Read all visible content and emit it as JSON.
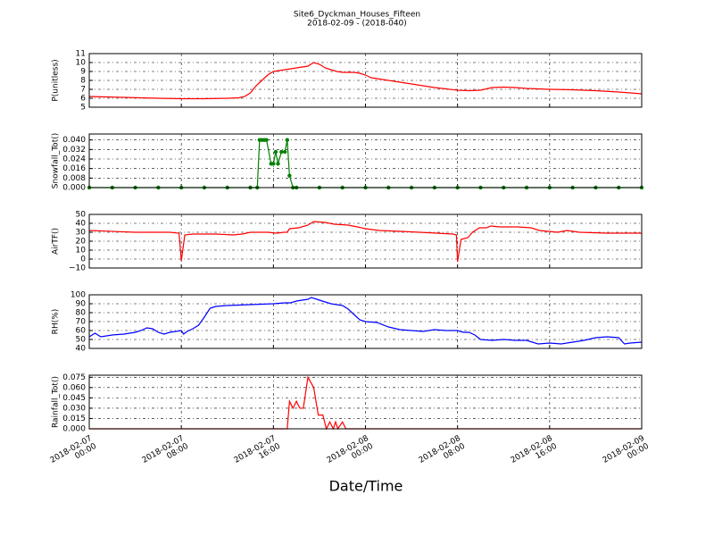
{
  "title": "Site6_Dyckman_Houses_Fifteen",
  "subtitle": "2018-02-09 - (2018-040)",
  "xlabel": "Date/Time",
  "xlim": [
    "2018-02-07 00:00",
    "2018-02-09 00:00"
  ],
  "xticks": [
    "2018-02-07 00:00",
    "2018-02-07 08:00",
    "2018-02-07 16:00",
    "2018-02-08 00:00",
    "2018-02-08 08:00",
    "2018-02-08 16:00",
    "2018-02-09 00:00"
  ],
  "grid": true,
  "chart_data": [
    {
      "type": "line",
      "ylabel": "P(unitless)",
      "color": "#ff0000",
      "ylim": [
        5,
        11
      ],
      "yticks": [
        5,
        6,
        7,
        8,
        9,
        10,
        11
      ],
      "x": [
        "2018-02-07 00:00",
        "2018-02-07 03:00",
        "2018-02-07 06:00",
        "2018-02-07 08:00",
        "2018-02-07 10:00",
        "2018-02-07 12:00",
        "2018-02-07 13:00",
        "2018-02-07 13:30",
        "2018-02-07 14:00",
        "2018-02-07 14:30",
        "2018-02-07 15:00",
        "2018-02-07 15:30",
        "2018-02-07 16:00",
        "2018-02-07 17:00",
        "2018-02-07 18:00",
        "2018-02-07 18:30",
        "2018-02-07 19:00",
        "2018-02-07 19:30",
        "2018-02-07 20:00",
        "2018-02-07 20:30",
        "2018-02-07 21:00",
        "2018-02-07 21:30",
        "2018-02-07 22:00",
        "2018-02-07 23:00",
        "2018-02-07 23:30",
        "2018-02-08 00:00",
        "2018-02-08 00:30",
        "2018-02-08 01:00",
        "2018-02-08 02:00",
        "2018-02-08 03:00",
        "2018-02-08 04:00",
        "2018-02-08 05:00",
        "2018-02-08 06:00",
        "2018-02-08 07:00",
        "2018-02-08 08:00",
        "2018-02-08 09:00",
        "2018-02-08 10:00",
        "2018-02-08 11:00",
        "2018-02-08 12:00",
        "2018-02-08 13:00",
        "2018-02-08 14:00",
        "2018-02-08 16:00",
        "2018-02-08 18:00",
        "2018-02-08 20:00",
        "2018-02-08 22:00",
        "2018-02-09 00:00"
      ],
      "values": [
        6.2,
        6.1,
        6.0,
        5.95,
        5.95,
        6.0,
        6.05,
        6.2,
        6.6,
        7.4,
        8.0,
        8.6,
        9.0,
        9.2,
        9.4,
        9.5,
        9.6,
        10.0,
        9.8,
        9.4,
        9.2,
        9.0,
        8.9,
        8.9,
        8.8,
        8.6,
        8.3,
        8.2,
        8.0,
        7.8,
        7.6,
        7.4,
        7.2,
        7.05,
        6.9,
        6.85,
        6.9,
        7.2,
        7.25,
        7.2,
        7.1,
        7.0,
        6.95,
        6.85,
        6.7,
        6.5
      ]
    },
    {
      "type": "line",
      "ylabel": "Snowfall_Tot()",
      "color": "#008000",
      "marker": "o",
      "ylim": [
        0,
        0.045
      ],
      "yticks": [
        {
          "value": 0,
          "label": "0.000"
        },
        {
          "value": 0.008,
          "label": "0.008"
        },
        {
          "value": 0.016,
          "label": "0.016"
        },
        {
          "value": 0.024,
          "label": "0.024"
        },
        {
          "value": 0.032,
          "label": "0.032"
        },
        {
          "value": 0.04,
          "label": "0.040"
        }
      ],
      "x": [
        "2018-02-07 00:00",
        "2018-02-07 02:00",
        "2018-02-07 04:00",
        "2018-02-07 06:00",
        "2018-02-07 08:00",
        "2018-02-07 10:00",
        "2018-02-07 12:00",
        "2018-02-07 14:00",
        "2018-02-07 14:36",
        "2018-02-07 14:48",
        "2018-02-07 15:00",
        "2018-02-07 15:12",
        "2018-02-07 15:24",
        "2018-02-07 15:48",
        "2018-02-07 16:00",
        "2018-02-07 16:12",
        "2018-02-07 16:24",
        "2018-02-07 16:42",
        "2018-02-07 17:00",
        "2018-02-07 17:12",
        "2018-02-07 17:24",
        "2018-02-07 17:42",
        "2018-02-07 18:00",
        "2018-02-07 20:00",
        "2018-02-07 22:00",
        "2018-02-08 00:00",
        "2018-02-08 02:00",
        "2018-02-08 04:00",
        "2018-02-08 06:00",
        "2018-02-08 08:00",
        "2018-02-08 10:00",
        "2018-02-08 12:00",
        "2018-02-08 14:00",
        "2018-02-08 16:00",
        "2018-02-08 18:00",
        "2018-02-08 20:00",
        "2018-02-08 22:00",
        "2018-02-09 00:00"
      ],
      "values": [
        0,
        0,
        0,
        0,
        0,
        0,
        0,
        0,
        0,
        0.04,
        0.04,
        0.04,
        0.04,
        0.02,
        0.02,
        0.03,
        0.02,
        0.03,
        0.03,
        0.04,
        0.01,
        0,
        0,
        0,
        0,
        0,
        0,
        0,
        0,
        0,
        0,
        0,
        0,
        0,
        0,
        0,
        0,
        0
      ]
    },
    {
      "type": "line",
      "ylabel": "AirTF()",
      "color": "#ff0000",
      "ylim": [
        -10,
        50
      ],
      "yticks": [
        {
          "value": -10,
          "label": "−10"
        },
        0,
        10,
        20,
        30,
        40,
        50
      ],
      "x": [
        "2018-02-07 00:00",
        "2018-02-07 04:00",
        "2018-02-07 07:00",
        "2018-02-07 07:48",
        "2018-02-07 08:00",
        "2018-02-07 08:18",
        "2018-02-07 09:00",
        "2018-02-07 11:00",
        "2018-02-07 12:30",
        "2018-02-07 13:18",
        "2018-02-07 14:00",
        "2018-02-07 15:30",
        "2018-02-07 16:18",
        "2018-02-07 16:54",
        "2018-02-07 17:12",
        "2018-02-07 17:24",
        "2018-02-07 18:12",
        "2018-02-07 19:00",
        "2018-02-07 19:30",
        "2018-02-07 20:30",
        "2018-02-07 21:18",
        "2018-02-07 22:30",
        "2018-02-07 23:18",
        "2018-02-08 00:00",
        "2018-02-08 01:12",
        "2018-02-08 03:06",
        "2018-02-08 04:42",
        "2018-02-08 06:12",
        "2018-02-08 07:36",
        "2018-02-08 07:54",
        "2018-02-08 08:00",
        "2018-02-08 08:18",
        "2018-02-08 08:54",
        "2018-02-08 09:18",
        "2018-02-08 09:54",
        "2018-02-08 10:30",
        "2018-02-08 10:54",
        "2018-02-08 11:42",
        "2018-02-08 13:12",
        "2018-02-08 14:24",
        "2018-02-08 15:06",
        "2018-02-08 15:54",
        "2018-02-08 16:42",
        "2018-02-08 17:30",
        "2018-02-08 18:36",
        "2018-02-08 21:00",
        "2018-02-08 22:30",
        "2018-02-09 00:00"
      ],
      "values": [
        32,
        30,
        30,
        29,
        -2,
        27,
        28,
        28,
        27,
        28,
        30,
        30,
        29,
        30,
        30,
        34,
        35,
        38,
        42,
        41,
        39,
        38,
        36,
        34,
        32,
        31,
        30,
        29,
        28,
        27,
        -3,
        22,
        24,
        30,
        35,
        35,
        37,
        36,
        36,
        35,
        32,
        31,
        30,
        32,
        30,
        29,
        29,
        29
      ]
    },
    {
      "type": "line",
      "ylabel": "RH(%)",
      "color": "#0000ff",
      "ylim": [
        40,
        100
      ],
      "yticks": [
        40,
        50,
        60,
        70,
        80,
        90,
        100
      ],
      "x": [
        "2018-02-07 00:00",
        "2018-02-07 00:30",
        "2018-02-07 01:00",
        "2018-02-07 02:00",
        "2018-02-07 03:00",
        "2018-02-07 04:00",
        "2018-02-07 04:30",
        "2018-02-07 05:00",
        "2018-02-07 05:30",
        "2018-02-07 06:00",
        "2018-02-07 06:30",
        "2018-02-07 07:00",
        "2018-02-07 08:00",
        "2018-02-07 08:12",
        "2018-02-07 08:30",
        "2018-02-07 09:00",
        "2018-02-07 09:30",
        "2018-02-07 10:00",
        "2018-02-07 10:30",
        "2018-02-07 11:00",
        "2018-02-07 12:00",
        "2018-02-07 14:00",
        "2018-02-07 16:00",
        "2018-02-07 17:00",
        "2018-02-07 17:30",
        "2018-02-07 18:00",
        "2018-02-07 19:00",
        "2018-02-07 19:18",
        "2018-02-07 20:00",
        "2018-02-07 21:00",
        "2018-02-07 22:00",
        "2018-02-07 22:30",
        "2018-02-07 23:00",
        "2018-02-07 23:30",
        "2018-02-08 00:00",
        "2018-02-08 01:00",
        "2018-02-08 02:00",
        "2018-02-08 03:00",
        "2018-02-08 04:00",
        "2018-02-08 05:00",
        "2018-02-08 06:00",
        "2018-02-08 07:00",
        "2018-02-08 08:00",
        "2018-02-08 08:30",
        "2018-02-08 09:00",
        "2018-02-08 09:30",
        "2018-02-08 10:00",
        "2018-02-08 11:00",
        "2018-02-08 12:00",
        "2018-02-08 13:00",
        "2018-02-08 14:00",
        "2018-02-08 15:00",
        "2018-02-08 16:00",
        "2018-02-08 17:00",
        "2018-02-08 18:00",
        "2018-02-08 19:00",
        "2018-02-08 20:00",
        "2018-02-08 21:00",
        "2018-02-08 22:00",
        "2018-02-08 22:30",
        "2018-02-08 23:00",
        "2018-02-09 00:00"
      ],
      "values": [
        53,
        57,
        53,
        55,
        56,
        58,
        60,
        63,
        62,
        58,
        56,
        58,
        60,
        56,
        59,
        62,
        66,
        75,
        85,
        87,
        88,
        89,
        90,
        91,
        91,
        93,
        95,
        97,
        94,
        90,
        88,
        84,
        78,
        72,
        70,
        69,
        64,
        61,
        60,
        59,
        61,
        60,
        60,
        58,
        58,
        55,
        50,
        49,
        50,
        49,
        49,
        45,
        46,
        45,
        47,
        49,
        52,
        53,
        52,
        45,
        46,
        47
      ]
    },
    {
      "type": "line",
      "ylabel": "Rainfall_Tot()",
      "color": "#ff0000",
      "ylim": [
        0,
        0.078
      ],
      "yticks": [
        {
          "value": 0,
          "label": "0.000"
        },
        {
          "value": 0.015,
          "label": "0.015"
        },
        {
          "value": 0.03,
          "label": "0.030"
        },
        {
          "value": 0.045,
          "label": "0.045"
        },
        {
          "value": 0.06,
          "label": "0.060"
        },
        {
          "value": 0.075,
          "label": "0.075"
        }
      ],
      "x": [
        "2018-02-07 00:00",
        "2018-02-07 17:12",
        "2018-02-07 17:24",
        "2018-02-07 17:42",
        "2018-02-07 18:00",
        "2018-02-07 18:18",
        "2018-02-07 18:36",
        "2018-02-07 19:00",
        "2018-02-07 19:30",
        "2018-02-07 19:54",
        "2018-02-07 20:18",
        "2018-02-07 20:36",
        "2018-02-07 20:54",
        "2018-02-07 21:12",
        "2018-02-07 21:24",
        "2018-02-07 21:36",
        "2018-02-07 22:00",
        "2018-02-07 22:18",
        "2018-02-09 00:00"
      ],
      "values": [
        0,
        0,
        0.04,
        0.03,
        0.04,
        0.03,
        0.03,
        0.075,
        0.06,
        0.02,
        0.02,
        0,
        0.01,
        0,
        0.01,
        0,
        0.01,
        0,
        0
      ]
    }
  ]
}
